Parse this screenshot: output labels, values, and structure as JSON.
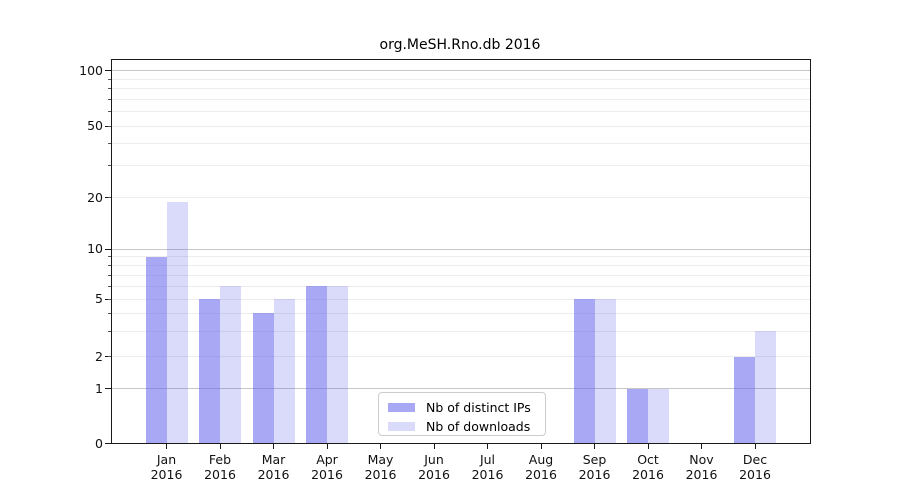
{
  "chart_data": {
    "type": "bar",
    "title": "org.MeSH.Rno.db 2016",
    "categories": [
      "Jan",
      "Feb",
      "Mar",
      "Apr",
      "May",
      "Jun",
      "Jul",
      "Aug",
      "Sep",
      "Oct",
      "Nov",
      "Dec"
    ],
    "year_label": "2016",
    "series": [
      {
        "name": "Nb of distinct IPs",
        "color": "rgba(102,102,238,0.57)",
        "values": [
          9,
          5,
          4,
          6,
          0,
          0,
          0,
          0,
          5,
          1,
          0,
          2
        ]
      },
      {
        "name": "Nb of downloads",
        "color": "rgba(102,102,238,0.24)",
        "values": [
          19,
          6,
          5,
          6,
          0,
          0,
          0,
          0,
          5,
          1,
          0,
          3
        ]
      }
    ],
    "y_axis": {
      "scale": "log",
      "tick_labels": [
        0,
        1,
        2,
        5,
        10,
        20,
        50,
        100
      ],
      "major_gridlines": [
        1,
        10,
        100
      ],
      "minor_gridlines": [
        2,
        3,
        4,
        5,
        6,
        7,
        8,
        9,
        20,
        30,
        40,
        50,
        60,
        70,
        80,
        90
      ],
      "ylim": [
        0,
        120
      ]
    },
    "legend": {
      "position": "lower-center",
      "entries": [
        "Nb of distinct IPs",
        "Nb of downloads"
      ]
    },
    "colors": {
      "bar_base": "#6666ee",
      "major_grid": "#c6c6c6",
      "minor_grid": "#ececec",
      "spine": "#1a1a1a",
      "background": "#ffffff"
    }
  }
}
